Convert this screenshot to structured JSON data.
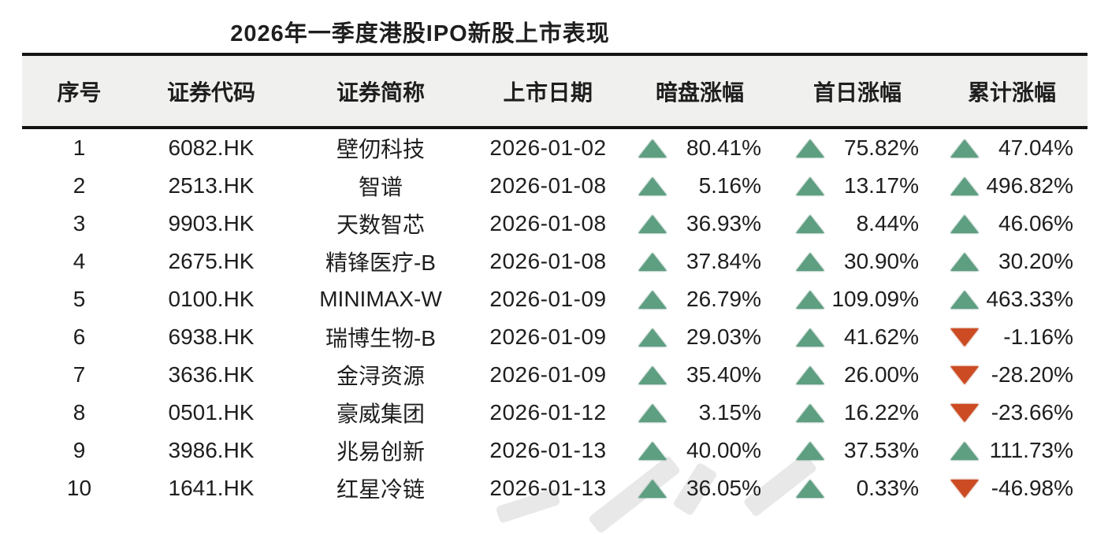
{
  "title": "2026年一季度港股IPO新股上市表现",
  "colors": {
    "up_triangle": "#5e9e81",
    "down_triangle": "#cc4b22",
    "header_background": "#f0f0ee",
    "rule_line": "#141414",
    "text": "#1e1e1e"
  },
  "chart_data": {
    "type": "table",
    "title": "2026年一季度港股IPO新股上市表现",
    "columns": [
      "序号",
      "证券代码",
      "证券简称",
      "上市日期",
      "暗盘涨幅",
      "首日涨幅",
      "累计涨幅"
    ],
    "rows": [
      {
        "no": "1",
        "code": "6082.HK",
        "name": "壁仞科技",
        "date": "2026-01-02",
        "dark": {
          "dir": "up",
          "value": "80.41%"
        },
        "first": {
          "dir": "up",
          "value": "75.82%"
        },
        "cum": {
          "dir": "up",
          "value": "47.04%"
        }
      },
      {
        "no": "2",
        "code": "2513.HK",
        "name": "智谱",
        "date": "2026-01-08",
        "dark": {
          "dir": "up",
          "value": "5.16%"
        },
        "first": {
          "dir": "up",
          "value": "13.17%"
        },
        "cum": {
          "dir": "up",
          "value": "496.82%"
        }
      },
      {
        "no": "3",
        "code": "9903.HK",
        "name": "天数智芯",
        "date": "2026-01-08",
        "dark": {
          "dir": "up",
          "value": "36.93%"
        },
        "first": {
          "dir": "up",
          "value": "8.44%"
        },
        "cum": {
          "dir": "up",
          "value": "46.06%"
        }
      },
      {
        "no": "4",
        "code": "2675.HK",
        "name": "精锋医疗-B",
        "date": "2026-01-08",
        "dark": {
          "dir": "up",
          "value": "37.84%"
        },
        "first": {
          "dir": "up",
          "value": "30.90%"
        },
        "cum": {
          "dir": "up",
          "value": "30.20%"
        }
      },
      {
        "no": "5",
        "code": "0100.HK",
        "name": "MINIMAX-W",
        "date": "2026-01-09",
        "dark": {
          "dir": "up",
          "value": "26.79%"
        },
        "first": {
          "dir": "up",
          "value": "109.09%"
        },
        "cum": {
          "dir": "up",
          "value": "463.33%"
        }
      },
      {
        "no": "6",
        "code": "6938.HK",
        "name": "瑞博生物-B",
        "date": "2026-01-09",
        "dark": {
          "dir": "up",
          "value": "29.03%"
        },
        "first": {
          "dir": "up",
          "value": "41.62%"
        },
        "cum": {
          "dir": "down",
          "value": "-1.16%"
        }
      },
      {
        "no": "7",
        "code": "3636.HK",
        "name": "金浔资源",
        "date": "2026-01-09",
        "dark": {
          "dir": "up",
          "value": "35.40%"
        },
        "first": {
          "dir": "up",
          "value": "26.00%"
        },
        "cum": {
          "dir": "down",
          "value": "-28.20%"
        }
      },
      {
        "no": "8",
        "code": "0501.HK",
        "name": "豪威集团",
        "date": "2026-01-12",
        "dark": {
          "dir": "up",
          "value": "3.15%"
        },
        "first": {
          "dir": "up",
          "value": "16.22%"
        },
        "cum": {
          "dir": "down",
          "value": "-23.66%"
        }
      },
      {
        "no": "9",
        "code": "3986.HK",
        "name": "兆易创新",
        "date": "2026-01-13",
        "dark": {
          "dir": "up",
          "value": "40.00%"
        },
        "first": {
          "dir": "up",
          "value": "37.53%"
        },
        "cum": {
          "dir": "up",
          "value": "111.73%"
        }
      },
      {
        "no": "10",
        "code": "1641.HK",
        "name": "红星冷链",
        "date": "2026-01-13",
        "dark": {
          "dir": "up",
          "value": "36.05%"
        },
        "first": {
          "dir": "up",
          "value": "0.33%"
        },
        "cum": {
          "dir": "down",
          "value": "-46.98%"
        }
      }
    ]
  }
}
